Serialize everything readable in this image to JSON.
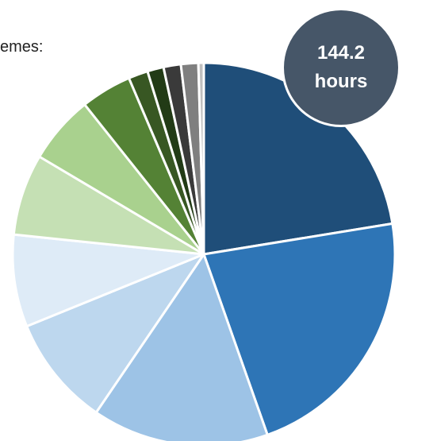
{
  "caption_fragment": "emes:",
  "badge": {
    "line1": "144.2",
    "line2": "hours",
    "color": "#465668"
  },
  "chart_data": {
    "type": "pie",
    "title": "",
    "values": [
      24.5,
      24.2,
      16.3,
      10.2,
      8.5,
      7.5,
      6.3,
      4.7,
      1.8,
      1.5,
      1.6,
      1.6,
      0.5
    ],
    "colors": [
      "#1f4e79",
      "#2e75b6",
      "#9dc3e6",
      "#bdd7ee",
      "#deebf7",
      "#c5e0b4",
      "#a9d18e",
      "#548235",
      "#385723",
      "#223b16",
      "#3a3a3a",
      "#7f7f7f",
      "#bfbfbf"
    ],
    "start_angle_deg": 0,
    "direction": "clockwise"
  }
}
